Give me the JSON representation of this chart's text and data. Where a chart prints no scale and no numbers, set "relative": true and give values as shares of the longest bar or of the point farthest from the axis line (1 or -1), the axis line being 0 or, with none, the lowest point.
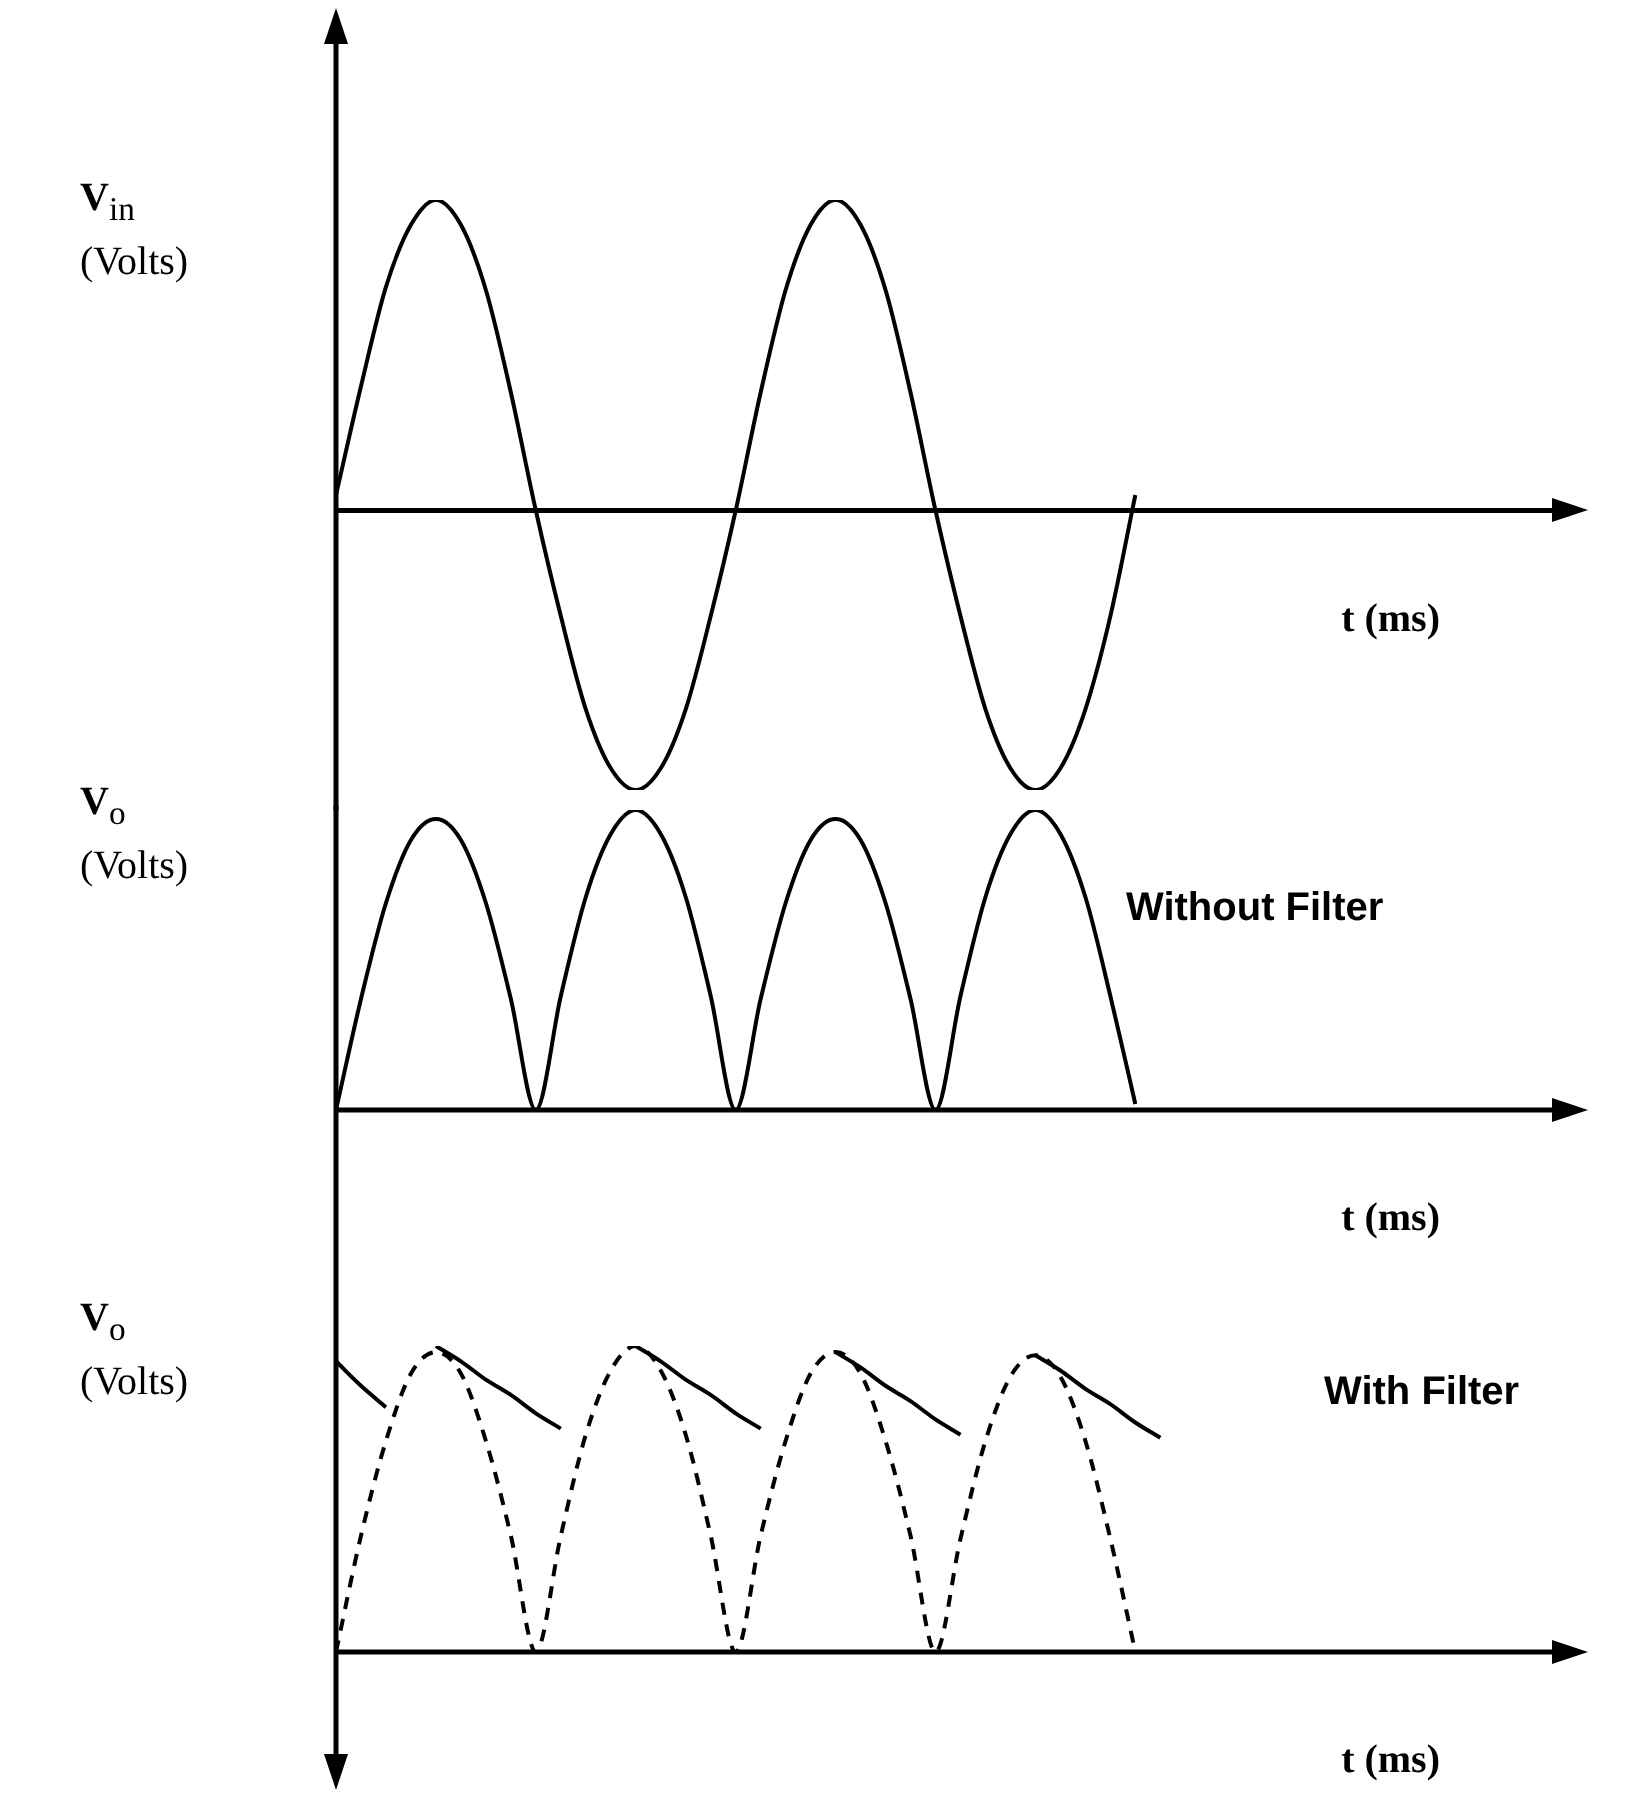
{
  "chart_data": [
    {
      "type": "line",
      "relative": true,
      "ylabel": "V$_{in}$\n(Volts)",
      "xlabel": "t (ms)",
      "marker": "none",
      "categories": [
        null,
        null,
        null,
        null,
        null,
        null,
        null,
        null,
        null,
        null,
        null,
        null,
        null,
        null,
        null,
        null,
        null,
        null,
        null,
        null,
        null,
        null,
        null,
        null,
        null,
        null,
        null,
        null,
        null,
        null,
        null,
        null,
        null,
        null,
        null,
        null,
        null,
        null,
        null,
        null,
        null,
        null,
        null,
        null,
        null,
        null,
        null,
        null,
        null,
        null
      ],
      "series": [
        {
          "color": "#000000",
          "line_style": "solid",
          "values": [
            0.05,
            0.4,
            0.72,
            0.92,
            1,
            0.92,
            0.71,
            0.38,
            0,
            -0.34,
            -0.64,
            -0.83,
            -0.9,
            -0.83,
            -0.64,
            -0.34,
            0,
            0.38,
            0.71,
            0.92,
            1,
            0.92,
            0.71,
            0.38,
            0,
            -0.34,
            -0.64,
            -0.83,
            -0.9,
            -0.83,
            -0.64,
            -0.34,
            0.05,
            null,
            null,
            null,
            null,
            null,
            null,
            null,
            null,
            null,
            null,
            null,
            null,
            null,
            null,
            null,
            null,
            null
          ]
        }
      ]
    },
    {
      "type": "line",
      "relative": true,
      "ylabel": "V$_{o}$\n(Volts)",
      "xlabel": "t (ms)",
      "marker": "none",
      "annotations": [
        "Without Filter"
      ],
      "categories": [
        null,
        null,
        null,
        null,
        null,
        null,
        null,
        null,
        null,
        null,
        null,
        null,
        null,
        null,
        null,
        null,
        null,
        null,
        null,
        null,
        null,
        null,
        null,
        null,
        null,
        null,
        null,
        null,
        null,
        null,
        null,
        null,
        null,
        null,
        null,
        null,
        null,
        null,
        null,
        null,
        null,
        null,
        null,
        null,
        null,
        null,
        null,
        null,
        null,
        null
      ],
      "series": [
        {
          "color": "#000000",
          "line_style": "solid",
          "values": [
            0,
            0.37,
            0.69,
            0.9,
            0.97,
            0.9,
            0.69,
            0.37,
            0,
            0.38,
            0.71,
            0.92,
            1,
            0.92,
            0.71,
            0.38,
            0,
            0.37,
            0.69,
            0.9,
            0.97,
            0.9,
            0.69,
            0.37,
            0,
            0.38,
            0.71,
            0.92,
            1,
            0.92,
            0.71,
            0.38,
            0.02,
            null,
            null,
            null,
            null,
            null,
            null,
            null,
            null,
            null,
            null,
            null,
            null,
            null,
            null,
            null,
            null,
            null
          ]
        }
      ]
    },
    {
      "type": "line",
      "relative": true,
      "ylabel": "V$_{o}$\n(Volts)",
      "xlabel": "t (ms)",
      "marker": "none",
      "annotations": [
        "With Filter"
      ],
      "categories": [
        null,
        null,
        null,
        null,
        null,
        null,
        null,
        null,
        null,
        null,
        null,
        null,
        null,
        null,
        null,
        null,
        null,
        null,
        null,
        null,
        null,
        null,
        null,
        null,
        null,
        null,
        null,
        null,
        null,
        null,
        null,
        null,
        null,
        null,
        null,
        null,
        null,
        null,
        null,
        null,
        null,
        null,
        null,
        null,
        null,
        null,
        null,
        null,
        null,
        null
      ],
      "series": [
        {
          "color": "#000000",
          "line_style": "dashed",
          "values": [
            0,
            0.38,
            0.69,
            0.91,
            0.98,
            0.91,
            0.69,
            0.38,
            0,
            0.38,
            0.71,
            0.92,
            1,
            0.92,
            0.71,
            0.38,
            0,
            0.38,
            0.69,
            0.91,
            0.98,
            0.91,
            0.69,
            0.38,
            0,
            0.37,
            0.69,
            0.9,
            0.97,
            0.9,
            0.69,
            0.37,
            0,
            null,
            null,
            null,
            null,
            null,
            null,
            null,
            null,
            null,
            null,
            null,
            null,
            null,
            null,
            null,
            null,
            null
          ]
        },
        {
          "color": "#000000",
          "line_style": "solid",
          "values": [
            0.95,
            0.87,
            0.8,
            null,
            1,
            0.95,
            0.89,
            0.84,
            0.78,
            0.73,
            null,
            null,
            1,
            0.95,
            0.89,
            0.84,
            0.78,
            0.73,
            null,
            null,
            0.98,
            0.93,
            0.87,
            0.82,
            0.76,
            0.71,
            null,
            null,
            0.97,
            0.92,
            0.86,
            0.81,
            0.75,
            0.7,
            null,
            null,
            null,
            null,
            null,
            null,
            null,
            null,
            null,
            null,
            null,
            null,
            null,
            null,
            null,
            null
          ]
        }
      ]
    }
  ]
}
